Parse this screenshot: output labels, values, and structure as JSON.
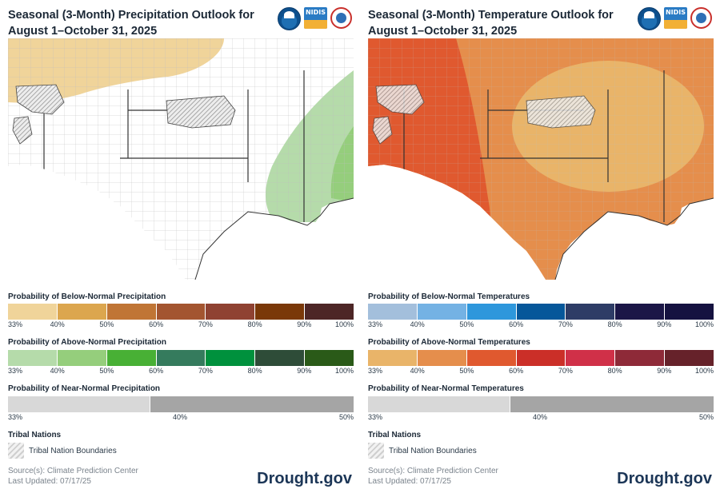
{
  "precip": {
    "title": "Seasonal (3-Month) Precipitation Outlook for August 1–October 31, 2025",
    "legend_below": "Probability of Below-Normal Precipitation",
    "legend_above": "Probability of Above-Normal Precipitation",
    "legend_near": "Probability of Near-Normal Precipitation",
    "below_colors": [
      "#f0d49a",
      "#dca64e",
      "#c07535",
      "#a35530",
      "#8f4232",
      "#7a3808",
      "#4d2626"
    ],
    "above_colors": [
      "#b5dbaa",
      "#95ce7c",
      "#48b035",
      "#357b5d",
      "#00913d",
      "#2e4c38",
      "#2a5a18"
    ],
    "near_colors": [
      "#d8d8d8",
      "#a5a5a5"
    ],
    "map_probability_percent": {
      "below_normal_north": 33,
      "above_normal_southeast_outer": 33,
      "above_normal_southeast_inner": 40
    }
  },
  "temp": {
    "title": "Seasonal (3-Month) Temperature Outlook for August 1–October 31, 2025",
    "legend_below": "Probability of Below-Normal Temperatures",
    "legend_above": "Probability of Above-Normal Temperatures",
    "legend_near": "Probability of Near-Normal Temperatures",
    "below_colors": [
      "#a3bfdc",
      "#74b2e4",
      "#2e97dc",
      "#06579a",
      "#2e3c66",
      "#1b1647",
      "#151240"
    ],
    "above_colors": [
      "#e9b469",
      "#e58e4c",
      "#e0592f",
      "#cb2f28",
      "#d03048",
      "#8e2a38",
      "#66222a"
    ],
    "near_colors": [
      "#d8d8d8",
      "#a5a5a5"
    ],
    "map_probability_percent": {
      "above_normal_center": 40,
      "above_normal_surround": 50,
      "above_normal_west": 60
    }
  },
  "ticks": [
    "33%",
    "40%",
    "50%",
    "60%",
    "70%",
    "80%",
    "90%",
    "100%"
  ],
  "near_ticks": [
    "33%",
    "40%",
    "50%"
  ],
  "tribal": {
    "heading": "Tribal Nations",
    "label": "Tribal Nation Boundaries"
  },
  "source_line": "Source(s): Climate Prediction Center",
  "updated_line": "Last Updated: 07/17/25",
  "brand": "Drought.gov",
  "logos": {
    "noaa": "noaa-logo",
    "nidis": "NIDIS",
    "nws": "nws-logo"
  }
}
